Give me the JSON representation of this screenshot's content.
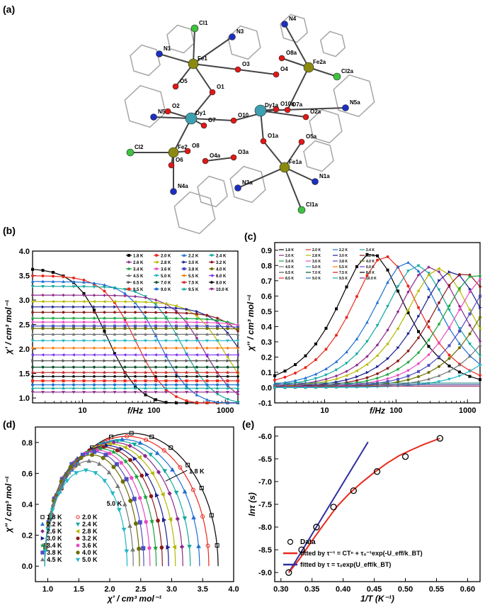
{
  "colors": {
    "series": [
      "#000000",
      "#e8291c",
      "#1f6fd1",
      "#13a89e",
      "#8b2a8c",
      "#b5b800",
      "#1b1f8f",
      "#8b1a1a",
      "#19a23c",
      "#e84ac1",
      "#4f4fc0",
      "#6e6e00",
      "#777777",
      "#20b7c4",
      "#ff7700",
      "#7b2ff0",
      "#555555",
      "#0a4f2a",
      "#c81e1e"
    ],
    "fe": "#8a8a10",
    "dy": "#3d9fb0",
    "cl": "#3fc23f",
    "n": "#1c2fc0",
    "o": "#e01818",
    "bond": "#444444",
    "wire": "#a6a6a6"
  },
  "panels": {
    "a": {
      "label": "(a)",
      "atoms": [
        "Cl1",
        "N3",
        "N4",
        "N1",
        "Fe1",
        "O3",
        "O8a",
        "Fe2a",
        "O4",
        "O5",
        "O1",
        "Cl2a",
        "O7a",
        "O2",
        "Dy1",
        "O7",
        "O10a",
        "Dy1a",
        "N5",
        "O10",
        "O2a",
        "N5a",
        "O1a",
        "O5a",
        "Cl2",
        "Fe2",
        "O8",
        "O6",
        "O4a",
        "O3a",
        "Fe1a",
        "N3a",
        "N1a",
        "N4a",
        "Cl1a"
      ]
    },
    "b": {
      "label": "(b)"
    },
    "c": {
      "label": "(c)"
    },
    "d": {
      "label": "(d)"
    },
    "e": {
      "label": "(e)"
    }
  },
  "chart_data": [
    {
      "panel": "b",
      "type": "line",
      "xlabel": "f/Hz",
      "ylabel": "χ' / cm³ mol⁻¹",
      "xscale": "log",
      "xlim": [
        2,
        1500
      ],
      "ylim": [
        0.9,
        4.0
      ],
      "yticks": [
        "1.0",
        "1.5",
        "2.0",
        "2.5",
        "3.0",
        "3.5",
        "4.0"
      ],
      "xticks": [
        "10",
        "100",
        "1000"
      ],
      "legend_position": "top-right",
      "legend": [
        "1.8 K",
        "2.0 K",
        "2.2 K",
        "2.4 K",
        "2.6 K",
        "2.8 K",
        "3.0 K",
        "3.2 K",
        "3.4 K",
        "3.6 K",
        "3.8 K",
        "4.0 K",
        "4.5 K",
        "5.0 K",
        "5.5 K",
        "6.0 K",
        "6.5 K",
        "7.0 K",
        "7.5 K",
        "8.0 K",
        "8.5 K",
        "9.0 K",
        "9.5 K",
        "10.0 K"
      ],
      "series": [
        {
          "name": "1.8 K",
          "chi0": 3.65,
          "chiS": 0.85,
          "f0": 22
        },
        {
          "name": "2.0 K",
          "chi0": 3.5,
          "chiS": 0.85,
          "f0": 55
        },
        {
          "name": "2.2 K",
          "chi0": 3.38,
          "chiS": 0.85,
          "f0": 120
        },
        {
          "name": "2.4 K",
          "chi0": 3.28,
          "chiS": 0.85,
          "f0": 250
        },
        {
          "name": "2.6 K",
          "chi0": 3.1,
          "chiS": 0.85,
          "f0": 500
        },
        {
          "name": "2.8 K",
          "chi0": 2.97,
          "chiS": 0.85,
          "f0": 1000
        },
        {
          "name": "3.0 K",
          "chi0": 2.86,
          "chiS": 0.85,
          "f0": 1800
        },
        {
          "name": "3.2 K",
          "chi0": 2.75,
          "chiS": 0.85,
          "f0": 3000
        },
        {
          "name": "3.4 K",
          "chi0": 2.63,
          "chiS": 0.85,
          "f0": 5000
        },
        {
          "name": "3.6 K",
          "chi0": 2.55,
          "chiS": 0.85,
          "f0": 8000
        },
        {
          "name": "3.8 K",
          "chi0": 2.47,
          "chiS": 0.85,
          "f0": 12000
        },
        {
          "name": "4.0 K",
          "chi0": 2.42,
          "chiS": 0.85,
          "f0": 20000
        },
        {
          "name": "4.5 K",
          "chi0": 2.3,
          "chiS": 0.85,
          "f0": 40000
        },
        {
          "name": "5.0 K",
          "chi0": 2.17,
          "chiS": 0.85,
          "f0": 90000
        },
        {
          "name": "5.5 K",
          "chi0": 2.02,
          "chiS": 1.8,
          "f0": 1000000
        },
        {
          "name": "6.0 K",
          "chi0": 1.88,
          "chiS": 1.8,
          "f0": 1000000
        },
        {
          "name": "6.5 K",
          "chi0": 1.76,
          "chiS": 1.7,
          "f0": 1000000
        },
        {
          "name": "7.0 K",
          "chi0": 1.63,
          "chiS": 1.6,
          "f0": 1000000
        },
        {
          "name": "7.5 K",
          "chi0": 1.52,
          "chiS": 1.5,
          "f0": 1000000
        },
        {
          "name": "8.0 K",
          "chi0": 1.44,
          "chiS": 1.4,
          "f0": 1000000
        },
        {
          "name": "8.5 K",
          "chi0": 1.35,
          "chiS": 1.3,
          "f0": 1000000
        },
        {
          "name": "9.0 K",
          "chi0": 1.27,
          "chiS": 1.25,
          "f0": 1000000
        },
        {
          "name": "9.5 K",
          "chi0": 1.2,
          "chiS": 1.2,
          "f0": 1000000
        },
        {
          "name": "10.0 K",
          "chi0": 1.12,
          "chiS": 1.1,
          "f0": 1000000
        }
      ]
    },
    {
      "panel": "c",
      "type": "line",
      "xlabel": "f/Hz",
      "ylabel": "χ'' / cm³ mol⁻¹",
      "xscale": "log",
      "xlim": [
        2,
        1500
      ],
      "ylim": [
        -0.1,
        0.95
      ],
      "yticks": [
        "-0.1",
        "0.0",
        "0.1",
        "0.2",
        "0.3",
        "0.4",
        "0.5",
        "0.6",
        "0.7",
        "0.8",
        "0.9"
      ],
      "xticks": [
        "10",
        "100",
        "1000"
      ],
      "legend_position": "top-left",
      "legend": [
        "1.8 K",
        "2.0 K",
        "2.2 K",
        "2.4 K",
        "2.6 K",
        "2.8 K",
        "3.0 K",
        "3.2 K",
        "3.4 K",
        "3.6 K",
        "3.8 K",
        "4.0 K",
        "4.5 K",
        "5.0 K",
        "5.5 K",
        "6.0 K",
        "6.5 K",
        "7.0 K",
        "7.5 K",
        "8.0 K",
        "8.5 K",
        "9.0 K",
        "9.5 K",
        "10.0 K"
      ],
      "series": [
        {
          "name": "1.8 K",
          "peak": 0.88,
          "fpeak": 45
        },
        {
          "name": "2.0 K",
          "peak": 0.86,
          "fpeak": 70
        },
        {
          "name": "2.2 K",
          "peak": 0.82,
          "fpeak": 140
        },
        {
          "name": "2.4 K",
          "peak": 0.8,
          "fpeak": 200
        },
        {
          "name": "2.6 K",
          "peak": 0.79,
          "fpeak": 300
        },
        {
          "name": "2.8 K",
          "peak": 0.78,
          "fpeak": 400
        },
        {
          "name": "3.0 K",
          "peak": 0.76,
          "fpeak": 600
        },
        {
          "name": "3.2 K",
          "peak": 0.75,
          "fpeak": 900
        },
        {
          "name": "3.4 K",
          "peak": 0.74,
          "fpeak": 1300
        },
        {
          "name": "3.6 K",
          "peak": 0.73,
          "fpeak": 1900
        },
        {
          "name": "3.8 K",
          "peak": 0.72,
          "fpeak": 2800
        },
        {
          "name": "4.0 K",
          "peak": 0.7,
          "fpeak": 4000
        },
        {
          "name": "4.5 K",
          "peak": 0.68,
          "fpeak": 7000
        },
        {
          "name": "5.0 K",
          "peak": 0.65,
          "fpeak": 13000
        }
      ]
    },
    {
      "panel": "d",
      "type": "scatter",
      "xlabel": "χ' / cm³ mol⁻¹",
      "ylabel": "χ'' / cm³ mol⁻¹",
      "xlim": [
        0.8,
        4.0
      ],
      "ylim": [
        -0.1,
        0.9
      ],
      "xticks": [
        "1.0",
        "1.5",
        "2.0",
        "2.5",
        "3.0",
        "3.5",
        "4.0"
      ],
      "yticks": [
        "0.0",
        "0.2",
        "0.4",
        "0.6",
        "0.8"
      ],
      "annotations": [
        "1.8 K",
        "5.0 K"
      ],
      "legend_position": "bottom-left",
      "legend": [
        "1.8 K",
        "2.0 K",
        "2.2 K",
        "2.4 K",
        "2.6 K",
        "2.8 K",
        "3.0 K",
        "3.2 K",
        "3.4 K",
        "3.6 K",
        "3.8 K",
        "4.0 K",
        "4.5 K",
        "5.0 K"
      ],
      "series": [
        {
          "name": "1.8 K",
          "chiS": 0.95,
          "chi0": 3.75,
          "peak": 0.86
        },
        {
          "name": "2.0 K",
          "chiS": 0.95,
          "chi0": 3.6,
          "peak": 0.84
        },
        {
          "name": "2.2 K",
          "chiS": 0.95,
          "chi0": 3.45,
          "peak": 0.82
        },
        {
          "name": "2.4 K",
          "chiS": 0.95,
          "chi0": 3.3,
          "peak": 0.81
        },
        {
          "name": "2.6 K",
          "chiS": 0.95,
          "chi0": 3.18,
          "peak": 0.8
        },
        {
          "name": "2.8 K",
          "chiS": 0.95,
          "chi0": 3.06,
          "peak": 0.79
        },
        {
          "name": "3.0 K",
          "chiS": 0.95,
          "chi0": 2.95,
          "peak": 0.78
        },
        {
          "name": "3.2 K",
          "chiS": 0.95,
          "chi0": 2.85,
          "peak": 0.77
        },
        {
          "name": "3.4 K",
          "chiS": 0.95,
          "chi0": 2.75,
          "peak": 0.76
        },
        {
          "name": "3.6 K",
          "chiS": 0.95,
          "chi0": 2.65,
          "peak": 0.75
        },
        {
          "name": "3.8 K",
          "chiS": 0.95,
          "chi0": 2.55,
          "peak": 0.74
        },
        {
          "name": "4.0 K",
          "chiS": 0.95,
          "chi0": 2.48,
          "peak": 0.72
        },
        {
          "name": "4.5 K",
          "chiS": 0.95,
          "chi0": 2.38,
          "peak": 0.68
        },
        {
          "name": "5.0 K",
          "chiS": 0.95,
          "chi0": 2.28,
          "peak": 0.62
        }
      ]
    },
    {
      "panel": "e",
      "type": "scatter",
      "xlabel": "1/T (K⁻¹)",
      "ylabel": "lnτ (s)",
      "xlim": [
        0.29,
        0.62
      ],
      "ylim": [
        -9.2,
        -5.8
      ],
      "xticks": [
        "0.30",
        "0.35",
        "0.40",
        "0.45",
        "0.50",
        "0.55",
        "0.60"
      ],
      "yticks": [
        "-9.0",
        "-8.5",
        "-8.0",
        "-7.5",
        "-7.0",
        "-6.5",
        "-6.0"
      ],
      "legend_position": "bottom-right",
      "data": {
        "x": [
          0.3125,
          0.3333,
          0.3571,
          0.3846,
          0.4167,
          0.4545,
          0.5,
          0.5556
        ],
        "y": [
          -9.0,
          -8.5,
          -8.0,
          -7.56,
          -7.2,
          -6.78,
          -6.45,
          -6.05
        ]
      },
      "legend": [
        "Data",
        "fitted by τ⁻¹ = CTⁿ + τ₀⁻¹exp(-U_eff/k_BT)",
        "fitted by τ = τ₀exp(U_eff/k_BT)"
      ],
      "fits": {
        "power_orbach": {
          "x": [
            0.3125,
            0.33,
            0.35,
            0.37,
            0.39,
            0.41,
            0.43,
            0.45,
            0.47,
            0.49,
            0.51,
            0.53,
            0.5556
          ],
          "y": [
            -9.0,
            -8.7,
            -8.3,
            -7.92,
            -7.55,
            -7.26,
            -7.02,
            -6.8,
            -6.6,
            -6.43,
            -6.3,
            -6.18,
            -6.05
          ]
        },
        "arrhenius": {
          "x": [
            0.3125,
            0.44
          ],
          "y": [
            -9.0,
            -6.13
          ]
        }
      }
    }
  ]
}
